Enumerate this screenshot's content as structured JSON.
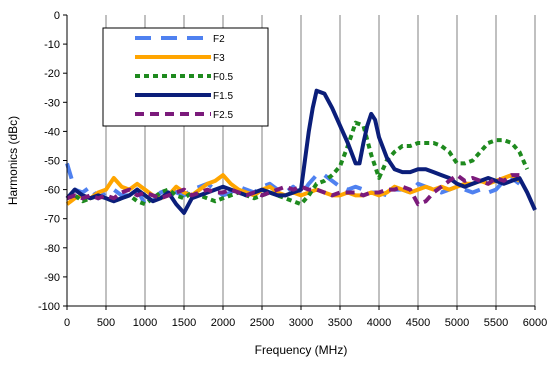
{
  "chart_data": {
    "type": "line",
    "title": "",
    "xlabel": "Frequency (MHz)",
    "ylabel": "Harmonics (dBc)",
    "xlim": [
      0,
      6000
    ],
    "ylim": [
      -100,
      0
    ],
    "x_ticks": [
      0,
      500,
      1000,
      1500,
      2000,
      2500,
      3000,
      3500,
      4000,
      4500,
      5000,
      5500,
      6000
    ],
    "y_ticks": [
      0,
      -10,
      -20,
      -30,
      -40,
      -50,
      -60,
      -70,
      -80,
      -90,
      -100
    ],
    "grid": "vertical",
    "legend_position": "top-left",
    "series": [
      {
        "name": "F2",
        "color": "#4f81f0",
        "dash": "long-dash",
        "x": [
          0,
          100,
          200,
          300,
          400,
          500,
          600,
          700,
          800,
          900,
          1000,
          1100,
          1200,
          1300,
          1400,
          1500,
          1600,
          1700,
          1800,
          1900,
          2000,
          2100,
          2200,
          2300,
          2400,
          2500,
          2600,
          2700,
          2800,
          2900,
          3000,
          3100,
          3200,
          3300,
          3400,
          3500,
          3600,
          3700,
          3800,
          3900,
          4000,
          4100,
          4200,
          4300,
          4400,
          4500,
          4600,
          4700,
          4800,
          4900,
          5000,
          5100,
          5200,
          5300,
          5400,
          5500,
          5600,
          5700,
          5800
        ],
        "y": [
          -51,
          -60,
          -61,
          -59,
          -63,
          -61,
          -60,
          -62,
          -62,
          -60,
          -65,
          -64,
          -61,
          -60,
          -61,
          -62,
          -60,
          -59,
          -58,
          -60,
          -62,
          -61,
          -59,
          -60,
          -61,
          -59,
          -58,
          -60,
          -61,
          -59,
          -62,
          -58,
          -55,
          -55,
          -57,
          -59,
          -60,
          -59,
          -60,
          -61,
          -61,
          -62,
          -60,
          -60,
          -61,
          -58,
          -59,
          -60,
          -61,
          -60,
          -59,
          -60,
          -61,
          -60,
          -61,
          -60,
          -57,
          -56,
          -58
        ]
      },
      {
        "name": "F3",
        "color": "#ffa500",
        "dash": "solid",
        "x": [
          0,
          100,
          200,
          300,
          400,
          500,
          600,
          700,
          800,
          900,
          1000,
          1100,
          1200,
          1300,
          1400,
          1500,
          1600,
          1700,
          1800,
          1900,
          2000,
          2100,
          2200,
          2300,
          2400,
          2500,
          2600,
          2700,
          2800,
          2900,
          3000,
          3100,
          3200,
          3300,
          3400,
          3500,
          3600,
          3700,
          3800,
          3900,
          4000,
          4100,
          4200,
          4300,
          4400,
          4500,
          4600,
          4700,
          4800,
          4900,
          5000,
          5100,
          5200,
          5300,
          5400,
          5500,
          5600,
          5700,
          5800
        ],
        "y": [
          -65,
          -63,
          -62,
          -63,
          -61,
          -60,
          -56,
          -59,
          -60,
          -58,
          -60,
          -62,
          -63,
          -62,
          -59,
          -61,
          -62,
          -60,
          -58,
          -57,
          -55,
          -58,
          -60,
          -61,
          -62,
          -60,
          -59,
          -61,
          -62,
          -61,
          -62,
          -61,
          -60,
          -61,
          -62,
          -62,
          -61,
          -62,
          -62,
          -61,
          -62,
          -61,
          -59,
          -60,
          -61,
          -60,
          -59,
          -60,
          -59,
          -60,
          -59,
          -58,
          -58,
          -57,
          -58,
          -57,
          -56,
          -55,
          -57
        ]
      },
      {
        "name": "F0.5",
        "color": "#1e8a1e",
        "dash": "short-dash",
        "x": [
          0,
          100,
          200,
          300,
          400,
          500,
          600,
          700,
          800,
          900,
          1000,
          1100,
          1200,
          1300,
          1400,
          1500,
          1600,
          1700,
          1800,
          1900,
          2000,
          2100,
          2200,
          2300,
          2400,
          2500,
          2600,
          2700,
          2800,
          2900,
          3000,
          3100,
          3200,
          3300,
          3400,
          3500,
          3600,
          3700,
          3800,
          3900,
          4000,
          4100,
          4200,
          4300,
          4400,
          4500,
          4600,
          4700,
          4800,
          4900,
          5000,
          5100,
          5200,
          5300,
          5400,
          5500,
          5600,
          5700,
          5800,
          5900
        ],
        "y": [
          -63,
          -62,
          -64,
          -63,
          -62,
          -63,
          -64,
          -63,
          -62,
          -64,
          -65,
          -63,
          -61,
          -60,
          -62,
          -63,
          -61,
          -62,
          -63,
          -64,
          -63,
          -62,
          -61,
          -62,
          -63,
          -62,
          -61,
          -62,
          -63,
          -64,
          -65,
          -62,
          -58,
          -57,
          -55,
          -52,
          -45,
          -37,
          -38,
          -48,
          -56,
          -50,
          -47,
          -45,
          -45,
          -44,
          -44,
          -44,
          -45,
          -47,
          -51,
          -51,
          -50,
          -47,
          -44,
          -43,
          -43,
          -44,
          -47,
          -53
        ]
      },
      {
        "name": "F1.5",
        "color": "#0b1e7a",
        "dash": "solid",
        "x": [
          0,
          100,
          200,
          300,
          400,
          500,
          600,
          700,
          800,
          900,
          1000,
          1100,
          1200,
          1300,
          1400,
          1500,
          1600,
          1700,
          1800,
          1900,
          2000,
          2100,
          2200,
          2300,
          2400,
          2500,
          2600,
          2700,
          2800,
          2900,
          3000,
          3050,
          3100,
          3150,
          3200,
          3300,
          3400,
          3500,
          3600,
          3700,
          3750,
          3800,
          3850,
          3900,
          3950,
          4000,
          4100,
          4200,
          4300,
          4400,
          4500,
          4600,
          4700,
          4800,
          4900,
          5000,
          5100,
          5200,
          5300,
          5400,
          5500,
          5600,
          5700,
          5800,
          5900,
          6000
        ],
        "y": [
          -63,
          -60,
          -62,
          -63,
          -62,
          -63,
          -64,
          -63,
          -62,
          -60,
          -62,
          -64,
          -63,
          -61,
          -65,
          -68,
          -63,
          -62,
          -61,
          -60,
          -59,
          -60,
          -61,
          -62,
          -61,
          -60,
          -61,
          -62,
          -62,
          -61,
          -60,
          -50,
          -40,
          -32,
          -26,
          -27,
          -32,
          -38,
          -44,
          -51,
          -51,
          -44,
          -38,
          -34,
          -36,
          -42,
          -49,
          -53,
          -54,
          -54,
          -53,
          -53,
          -54,
          -55,
          -56,
          -58,
          -59,
          -58,
          -57,
          -56,
          -57,
          -58,
          -57,
          -56,
          -61,
          -67
        ]
      },
      {
        "name": "F2.5",
        "color": "#7b1a7b",
        "dash": "dash",
        "x": [
          0,
          100,
          200,
          300,
          400,
          500,
          600,
          700,
          800,
          900,
          1000,
          1100,
          1200,
          1300,
          1400,
          1500,
          1600,
          1700,
          1800,
          1900,
          2000,
          2100,
          2200,
          2300,
          2400,
          2500,
          2600,
          2700,
          2800,
          2900,
          3000,
          3100,
          3200,
          3300,
          3400,
          3500,
          3600,
          3700,
          3800,
          3900,
          4000,
          4100,
          4200,
          4300,
          4400,
          4500,
          4600,
          4700,
          4800,
          4900,
          5000,
          5100,
          5200,
          5300,
          5400,
          5500,
          5600,
          5700,
          5800
        ],
        "y": [
          -63,
          -62,
          -63,
          -62,
          -63,
          -62,
          -63,
          -61,
          -60,
          -62,
          -61,
          -62,
          -63,
          -62,
          -61,
          -60,
          -62,
          -61,
          -60,
          -61,
          -61,
          -60,
          -61,
          -62,
          -61,
          -62,
          -61,
          -60,
          -59,
          -60,
          -59,
          -60,
          -60,
          -61,
          -62,
          -61,
          -61,
          -61,
          -62,
          -61,
          -61,
          -60,
          -60,
          -59,
          -60,
          -65,
          -64,
          -61,
          -59,
          -57,
          -55,
          -57,
          -56,
          -57,
          -58,
          -56,
          -57,
          -55,
          -55
        ]
      }
    ]
  }
}
